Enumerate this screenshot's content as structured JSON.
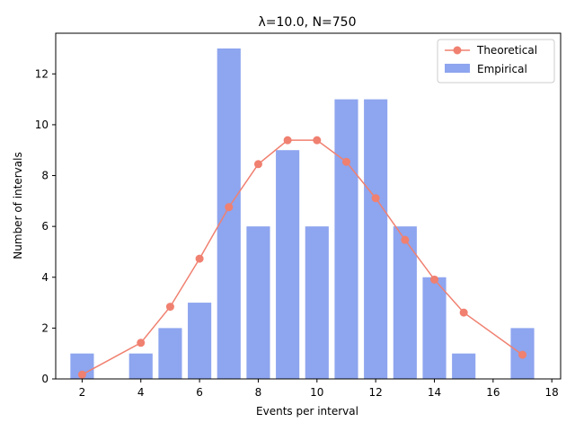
{
  "chart_data": {
    "type": "bar",
    "title": "λ=10.0, N=750",
    "xlabel": "Events per interval",
    "ylabel": "Number of intervals",
    "xlim": [
      1.1,
      18.3
    ],
    "ylim": [
      0,
      13.6
    ],
    "xticks": [
      2,
      4,
      6,
      8,
      10,
      12,
      14,
      16,
      18
    ],
    "yticks": [
      0,
      2,
      4,
      6,
      8,
      10,
      12
    ],
    "legend_position": "top-right",
    "grid": false,
    "series": [
      {
        "name": "Empirical",
        "kind": "bar",
        "color": "#8ea5ef",
        "x": [
          2,
          4,
          5,
          6,
          7,
          8,
          9,
          10,
          11,
          12,
          13,
          14,
          15,
          17
        ],
        "values": [
          1,
          1,
          2,
          3,
          13,
          6,
          9,
          6,
          11,
          11,
          6,
          4,
          1,
          2
        ]
      },
      {
        "name": "Theoretical",
        "kind": "line",
        "color": "#f08070",
        "x": [
          2,
          4,
          5,
          6,
          7,
          8,
          9,
          10,
          11,
          12,
          13,
          14,
          15,
          17
        ],
        "values": [
          0.17,
          1.42,
          2.84,
          4.73,
          6.76,
          8.45,
          9.39,
          9.39,
          8.54,
          7.11,
          5.47,
          3.91,
          2.61,
          0.95
        ]
      }
    ]
  }
}
